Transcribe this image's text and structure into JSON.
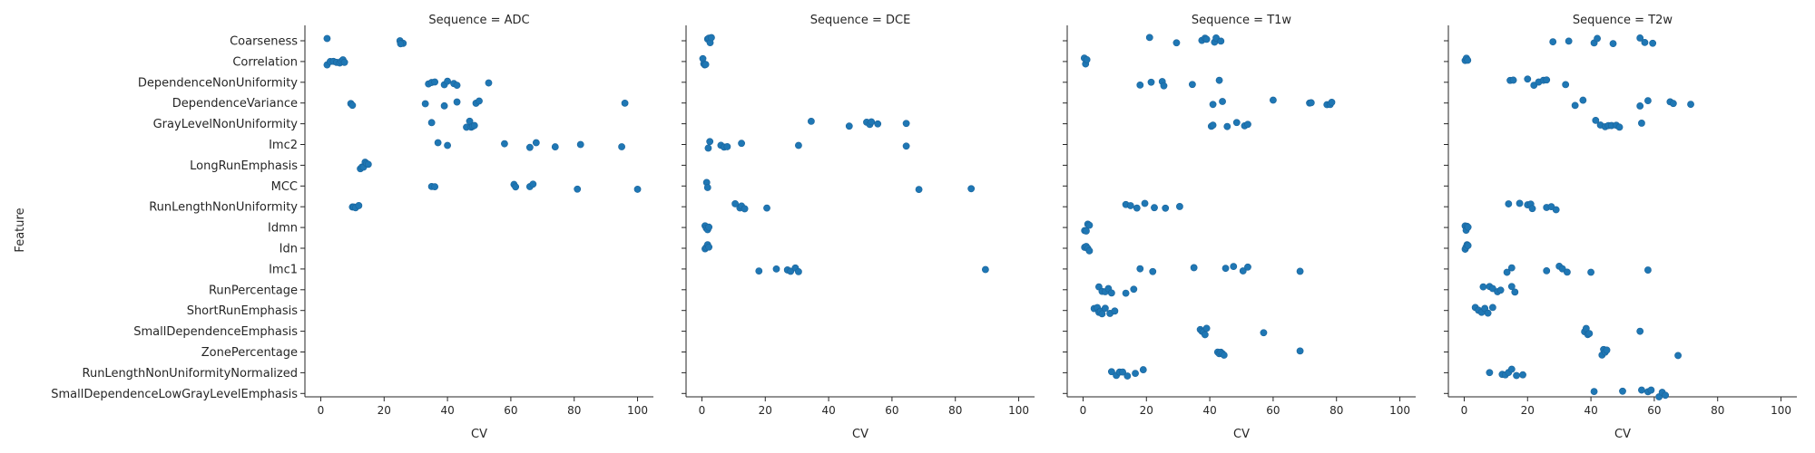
{
  "chart_data": {
    "type": "scatter",
    "subtype": "strip",
    "ylabel": "Feature",
    "xlabel": "CV",
    "xlim": [
      -5,
      105
    ],
    "xticks": [
      0,
      20,
      40,
      60,
      80,
      100
    ],
    "grid": false,
    "point_color": "#1f77b4",
    "categories": [
      "Coarseness",
      "Correlation",
      "DependenceNonUniformity",
      "DependenceVariance",
      "GrayLevelNonUniformity",
      "Imc2",
      "LongRunEmphasis",
      "MCC",
      "RunLengthNonUniformity",
      "Idmn",
      "Idn",
      "Imc1",
      "RunPercentage",
      "ShortRunEmphasis",
      "SmallDependenceEmphasis",
      "ZonePercentage",
      "RunLengthNonUniformityNormalized",
      "SmallDependenceLowGrayLevelEmphasis"
    ],
    "panels": [
      {
        "title": "Sequence = ADC",
        "points": {
          "Coarseness": [
            2,
            25,
            25.5,
            26,
            25.2
          ],
          "Correlation": [
            2,
            3,
            4,
            5,
            6,
            6.5,
            7,
            7.5
          ],
          "DependenceNonUniformity": [
            34,
            35,
            36,
            39,
            40,
            42,
            43,
            53
          ],
          "DependenceVariance": [
            9.5,
            10,
            33,
            39,
            43,
            49,
            50,
            96
          ],
          "GrayLevelNonUniformity": [
            35,
            46,
            47,
            47.5,
            48,
            48.5
          ],
          "Imc2": [
            37,
            40,
            58,
            66,
            68,
            74,
            82,
            95
          ],
          "LongRunEmphasis": [
            12.5,
            13,
            13.5,
            14,
            14.5,
            15
          ],
          "MCC": [
            35,
            36,
            61,
            61.5,
            66,
            67,
            81,
            100
          ],
          "RunLengthNonUniformity": [
            10,
            10.5,
            11,
            12
          ],
          "Idmn": [],
          "Idn": [],
          "Imc1": [],
          "RunPercentage": [],
          "ShortRunEmphasis": [],
          "SmallDependenceEmphasis": [],
          "ZonePercentage": [],
          "RunLengthNonUniformityNormalized": [],
          "SmallDependenceLowGrayLevelEmphasis": []
        }
      },
      {
        "title": "Sequence = DCE",
        "points": {
          "Coarseness": [
            1.8,
            2.2,
            2.6,
            3
          ],
          "Correlation": [
            0.3,
            0.6,
            0.9,
            1.2
          ],
          "DependenceNonUniformity": [],
          "DependenceVariance": [],
          "GrayLevelNonUniformity": [
            34.5,
            46.5,
            52,
            53,
            53.5,
            55.5,
            64.5
          ],
          "Imc2": [
            2,
            2.5,
            6,
            7,
            8,
            12.5,
            30.5,
            64.5
          ],
          "LongRunEmphasis": [],
          "MCC": [
            1.5,
            1.8,
            68.5,
            85
          ],
          "RunLengthNonUniformity": [
            10.5,
            12,
            12.5,
            13.5,
            20.5
          ],
          "Idmn": [
            1,
            1.4,
            1.8,
            2.2
          ],
          "Idn": [
            1,
            1.4,
            1.8,
            2.2
          ],
          "Imc1": [
            18,
            23.5,
            27,
            28,
            29.5,
            30.5,
            89.5
          ],
          "RunPercentage": [],
          "ShortRunEmphasis": [],
          "SmallDependenceEmphasis": [],
          "ZonePercentage": [],
          "RunLengthNonUniformityNormalized": [],
          "SmallDependenceLowGrayLevelEmphasis": []
        }
      },
      {
        "title": "Sequence = T1w",
        "points": {
          "Coarseness": [
            21,
            29.5,
            37.5,
            38.5,
            39,
            41.5,
            42,
            43.5
          ],
          "Correlation": [
            0.4,
            0.8,
            1.2
          ],
          "DependenceNonUniformity": [
            18,
            21.5,
            25,
            25.5,
            34.5,
            43
          ],
          "DependenceVariance": [
            41,
            44,
            60,
            71.5,
            72,
            77,
            78,
            78.5
          ],
          "GrayLevelNonUniformity": [
            40.5,
            41,
            45.5,
            48.5,
            51,
            52
          ],
          "Imc2": [],
          "LongRunEmphasis": [],
          "MCC": [],
          "RunLengthNonUniformity": [
            13.5,
            15,
            17,
            19.5,
            22.5,
            26,
            30.5
          ],
          "Idmn": [
            0.5,
            1,
            1.5,
            2
          ],
          "Idn": [
            0.5,
            1,
            1.5,
            2
          ],
          "Imc1": [
            18,
            22,
            35,
            45,
            47.5,
            50.5,
            52,
            68.5
          ],
          "RunPercentage": [
            5,
            6,
            7,
            8,
            9,
            13.5,
            16
          ],
          "ShortRunEmphasis": [
            3.5,
            4.5,
            5,
            5.5,
            6,
            7,
            8.5,
            10
          ],
          "SmallDependenceEmphasis": [
            37,
            37.5,
            38,
            38.5,
            39,
            57
          ],
          "ZonePercentage": [
            42.5,
            43,
            43.5,
            44,
            44.5,
            68.5
          ],
          "RunLengthNonUniformityNormalized": [
            9,
            10.5,
            11.5,
            12.5,
            14,
            16.5,
            19
          ],
          "SmallDependenceLowGrayLevelEmphasis": []
        }
      },
      {
        "title": "Sequence = T2w",
        "points": {
          "Coarseness": [
            28,
            33,
            41,
            42,
            47,
            55.5,
            57,
            59.5
          ],
          "Correlation": [
            0.3,
            0.7,
            1.1
          ],
          "DependenceNonUniformity": [
            14.5,
            15.5,
            20,
            22,
            23.5,
            25,
            26,
            32
          ],
          "DependenceVariance": [
            35,
            37.5,
            55.5,
            58,
            65,
            66,
            71.5
          ],
          "GrayLevelNonUniformity": [
            41.5,
            43,
            44.5,
            45.5,
            46.5,
            48,
            49,
            56
          ],
          "Imc2": [],
          "LongRunEmphasis": [],
          "MCC": [],
          "RunLengthNonUniformity": [
            14,
            17.5,
            20,
            21,
            21.5,
            26,
            27.5,
            29
          ],
          "Idmn": [
            0.3,
            0.6,
            0.9,
            1.2
          ],
          "Idn": [
            0.3,
            0.6,
            0.9,
            1.2
          ],
          "Imc1": [
            13.5,
            15,
            26,
            30,
            31,
            32.5,
            40,
            58
          ],
          "RunPercentage": [
            6,
            8,
            9,
            10.5,
            11.5,
            15,
            16
          ],
          "ShortRunEmphasis": [
            3.5,
            4.5,
            5.5,
            6.5,
            7.5,
            9
          ],
          "SmallDependenceEmphasis": [
            38,
            38.5,
            39,
            39.5,
            55.5
          ],
          "ZonePercentage": [
            43.5,
            44,
            44.5,
            45,
            67.5
          ],
          "RunLengthNonUniformityNormalized": [
            8,
            12,
            13,
            14,
            15,
            16.5,
            18.5
          ],
          "SmallDependenceLowGrayLevelEmphasis": [
            41,
            50,
            56,
            58,
            59,
            61.5,
            62.5,
            63.5
          ]
        }
      }
    ]
  }
}
